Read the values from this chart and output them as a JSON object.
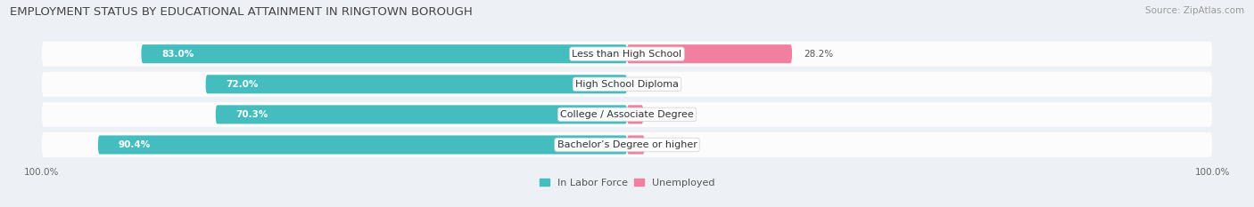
{
  "title": "EMPLOYMENT STATUS BY EDUCATIONAL ATTAINMENT IN RINGTOWN BOROUGH",
  "source": "Source: ZipAtlas.com",
  "categories": [
    "Less than High School",
    "High School Diploma",
    "College / Associate Degree",
    "Bachelor’s Degree or higher"
  ],
  "labor_force": [
    83.0,
    72.0,
    70.3,
    90.4
  ],
  "unemployed": [
    28.2,
    0.0,
    2.8,
    3.0
  ],
  "max_val": 100.0,
  "color_labor": "#45bdbf",
  "color_unemployed": "#f07fa0",
  "color_track": "#dde5ec",
  "color_bg": "#edf1f5",
  "color_row_bg": "#e4ebf0",
  "title_fontsize": 9.5,
  "label_fontsize": 8.0,
  "value_fontsize": 7.5,
  "tick_fontsize": 7.5,
  "legend_fontsize": 8.0,
  "source_fontsize": 7.5
}
